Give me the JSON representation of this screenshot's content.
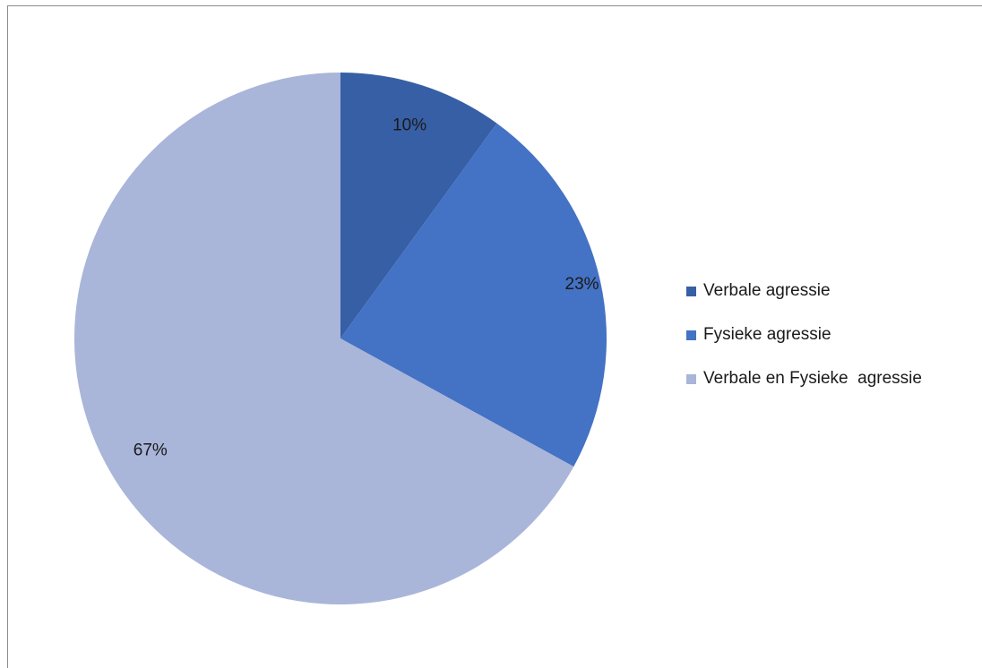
{
  "chart_data": {
    "type": "pie",
    "title": "",
    "legend_position": "right",
    "series": [
      {
        "slices": [
          {
            "label": "Verbale agressie",
            "value": 10,
            "display": "10%",
            "color": "#375fa5"
          },
          {
            "label": "Fysieke agressie",
            "value": 23,
            "display": "23%",
            "color": "#4472c4"
          },
          {
            "label": "Verbale en Fysieke  agressie",
            "value": 67,
            "display": "67%",
            "color": "#a9b5d9"
          }
        ]
      }
    ]
  }
}
